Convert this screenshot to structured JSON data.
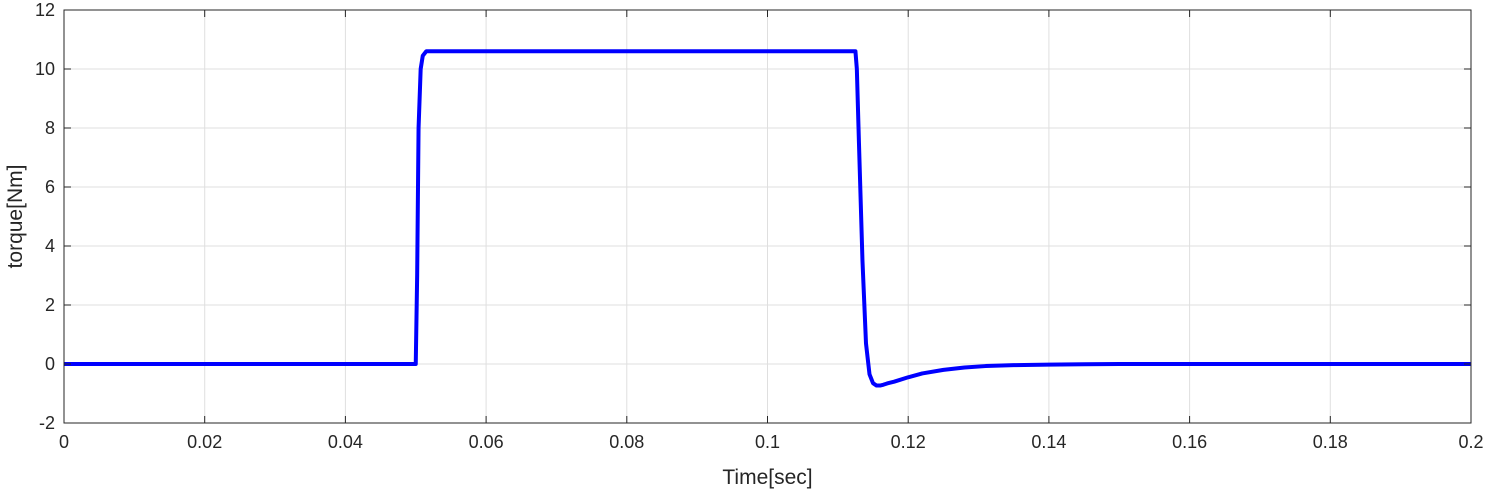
{
  "chart_data": {
    "type": "line",
    "title": "",
    "xlabel": "Time[sec]",
    "ylabel": "torque[Nm]",
    "xlim": [
      0,
      0.2
    ],
    "ylim": [
      -2,
      12
    ],
    "xticks": [
      "0",
      "0.02",
      "0.04",
      "0.06",
      "0.08",
      "0.1",
      "0.12",
      "0.14",
      "0.16",
      "0.18",
      "0.2"
    ],
    "yticks": [
      "-2",
      "0",
      "2",
      "4",
      "6",
      "8",
      "10",
      "12"
    ],
    "grid": true,
    "series": [
      {
        "color": "#0000ff",
        "x": [
          0,
          0.05,
          0.0502,
          0.0504,
          0.0507,
          0.051,
          0.0515,
          0.052,
          0.1125,
          0.1127,
          0.113,
          0.1135,
          0.114,
          0.1145,
          0.115,
          0.1155,
          0.116,
          0.1165,
          0.117,
          0.118,
          0.12,
          0.122,
          0.125,
          0.128,
          0.131,
          0.135,
          0.14,
          0.145,
          0.15,
          0.16,
          0.17,
          0.2
        ],
        "y": [
          0,
          0,
          3.0,
          8.0,
          10.0,
          10.45,
          10.6,
          10.6,
          10.6,
          10.0,
          7.5,
          3.5,
          0.7,
          -0.35,
          -0.65,
          -0.73,
          -0.73,
          -0.7,
          -0.66,
          -0.6,
          -0.45,
          -0.32,
          -0.2,
          -0.12,
          -0.07,
          -0.04,
          -0.02,
          -0.01,
          0,
          0,
          0,
          0
        ]
      }
    ]
  }
}
